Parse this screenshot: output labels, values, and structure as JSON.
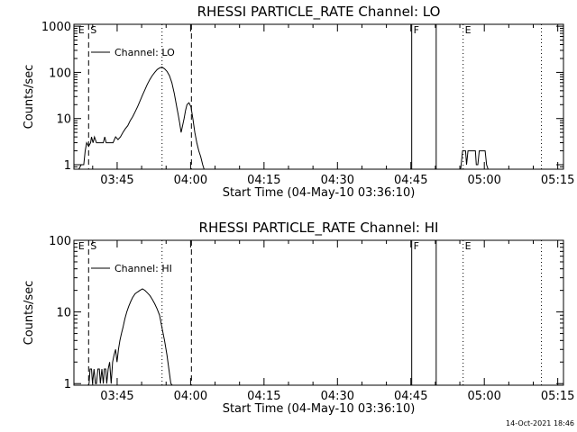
{
  "timestamp": "14-Oct-2021 18:46",
  "colors": {
    "background": "#ffffff",
    "ink": "#000000"
  },
  "chart_data": [
    {
      "type": "line",
      "title": "RHESSI PARTICLE_RATE Channel: LO",
      "xlabel": "Start Time (04-May-10 03:36:10)",
      "ylabel": "Counts/sec",
      "yscale": "log",
      "ylim": [
        0.8,
        1100
      ],
      "xlim_minutes": [
        0,
        100
      ],
      "xticks": [
        {
          "min": 8.83,
          "label": "03:45"
        },
        {
          "min": 23.83,
          "label": "04:00"
        },
        {
          "min": 38.83,
          "label": "04:15"
        },
        {
          "min": 53.83,
          "label": "04:30"
        },
        {
          "min": 68.83,
          "label": "04:45"
        },
        {
          "min": 83.83,
          "label": "05:00"
        },
        {
          "min": 98.83,
          "label": "05:15"
        }
      ],
      "yticks": [
        {
          "value": 1,
          "label": "1"
        },
        {
          "value": 10,
          "label": "10"
        },
        {
          "value": 100,
          "label": "100"
        },
        {
          "value": 1000,
          "label": "1000"
        }
      ],
      "legend": "Channel: LO",
      "markers": [
        {
          "min": 0.5,
          "style": "none",
          "label": "E"
        },
        {
          "min": 3.0,
          "style": "dashed",
          "label": "S"
        },
        {
          "min": 18.0,
          "style": "dotted",
          "label": ""
        },
        {
          "min": 24.0,
          "style": "dashed",
          "label": ""
        },
        {
          "min": 69.0,
          "style": "solid",
          "label": "F"
        },
        {
          "min": 74.0,
          "style": "solid",
          "label": ""
        },
        {
          "min": 79.5,
          "style": "dotted",
          "label": "E"
        },
        {
          "min": 95.5,
          "style": "dotted",
          "label": ""
        }
      ],
      "series": [
        {
          "name": "Channel: LO",
          "segments": [
            [
              [
                1,
                0.8
              ],
              [
                1.5,
                1
              ],
              [
                2,
                1
              ],
              [
                2.3,
                2
              ],
              [
                2.6,
                3
              ],
              [
                3,
                2.5
              ],
              [
                3.4,
                3
              ],
              [
                3.6,
                4
              ],
              [
                3.9,
                3
              ],
              [
                4.2,
                4
              ],
              [
                4.6,
                3
              ],
              [
                5,
                3
              ],
              [
                5.5,
                3
              ],
              [
                6,
                3
              ],
              [
                6.3,
                4
              ],
              [
                6.6,
                3
              ],
              [
                7,
                3
              ],
              [
                7.5,
                3
              ],
              [
                8,
                3
              ],
              [
                8.5,
                4
              ],
              [
                9,
                3.5
              ],
              [
                9.5,
                4
              ],
              [
                10,
                5
              ],
              [
                10.5,
                6
              ],
              [
                11,
                7
              ],
              [
                11.5,
                9
              ],
              [
                12,
                11
              ],
              [
                12.5,
                14
              ],
              [
                13,
                18
              ],
              [
                13.5,
                24
              ],
              [
                14,
                32
              ],
              [
                14.5,
                42
              ],
              [
                15,
                55
              ],
              [
                15.5,
                70
              ],
              [
                16,
                85
              ],
              [
                16.5,
                100
              ],
              [
                17,
                115
              ],
              [
                17.5,
                125
              ],
              [
                18,
                130
              ],
              [
                18.5,
                120
              ],
              [
                19,
                105
              ],
              [
                19.5,
                85
              ],
              [
                20,
                60
              ],
              [
                20.5,
                35
              ],
              [
                21,
                18
              ],
              [
                21.3,
                12
              ],
              [
                21.6,
                8
              ],
              [
                21.9,
                5
              ],
              [
                22.2,
                7
              ],
              [
                22.5,
                10
              ],
              [
                22.8,
                15
              ],
              [
                23.1,
                20
              ],
              [
                23.5,
                22
              ],
              [
                23.9,
                18
              ],
              [
                24.3,
                10
              ],
              [
                24.7,
                5
              ],
              [
                25.1,
                3
              ],
              [
                25.5,
                2
              ],
              [
                25.9,
                1.5
              ],
              [
                26.3,
                1
              ],
              [
                26.6,
                0.8
              ]
            ],
            [
              [
                79,
                0.8
              ],
              [
                79.4,
                2
              ],
              [
                80,
                2
              ],
              [
                80.2,
                1
              ],
              [
                80.5,
                2
              ],
              [
                81,
                2
              ],
              [
                81.5,
                2
              ],
              [
                82,
                2
              ],
              [
                82.2,
                1
              ],
              [
                82.5,
                1
              ],
              [
                82.8,
                2
              ],
              [
                83.5,
                2
              ],
              [
                84,
                2
              ],
              [
                84.3,
                1
              ],
              [
                84.6,
                0.8
              ]
            ]
          ]
        }
      ]
    },
    {
      "type": "line",
      "title": "RHESSI PARTICLE_RATE Channel: HI",
      "xlabel": "Start Time (04-May-10 03:36:10)",
      "ylabel": "Counts/sec",
      "yscale": "log",
      "ylim": [
        0.95,
        100
      ],
      "xlim_minutes": [
        0,
        100
      ],
      "xticks": [
        {
          "min": 8.83,
          "label": "03:45"
        },
        {
          "min": 23.83,
          "label": "04:00"
        },
        {
          "min": 38.83,
          "label": "04:15"
        },
        {
          "min": 53.83,
          "label": "04:30"
        },
        {
          "min": 68.83,
          "label": "04:45"
        },
        {
          "min": 83.83,
          "label": "05:00"
        },
        {
          "min": 98.83,
          "label": "05:15"
        }
      ],
      "yticks": [
        {
          "value": 1,
          "label": "1"
        },
        {
          "value": 10,
          "label": "10"
        },
        {
          "value": 100,
          "label": "100"
        }
      ],
      "legend": "Channel: HI",
      "markers": [
        {
          "min": 0.5,
          "style": "none",
          "label": "E"
        },
        {
          "min": 3.0,
          "style": "dashed",
          "label": "S"
        },
        {
          "min": 18.0,
          "style": "dotted",
          "label": ""
        },
        {
          "min": 24.0,
          "style": "dashed",
          "label": ""
        },
        {
          "min": 69.0,
          "style": "solid",
          "label": "F"
        },
        {
          "min": 74.0,
          "style": "solid",
          "label": ""
        },
        {
          "min": 79.5,
          "style": "dotted",
          "label": "E"
        },
        {
          "min": 95.5,
          "style": "dotted",
          "label": ""
        }
      ],
      "series": [
        {
          "name": "Channel: HI",
          "segments": [
            [
              [
                2.9,
                0.95
              ],
              [
                3.1,
                1
              ],
              [
                3.3,
                1.6
              ],
              [
                3.6,
                1.6
              ],
              [
                3.8,
                1
              ],
              [
                4.1,
                1.6
              ],
              [
                4.4,
                1
              ],
              [
                4.6,
                1
              ],
              [
                4.9,
                1.6
              ],
              [
                5.2,
                1.6
              ],
              [
                5.4,
                1
              ],
              [
                5.7,
                1.6
              ],
              [
                6,
                1
              ],
              [
                6.2,
                1.6
              ],
              [
                6.5,
                1.6
              ],
              [
                6.7,
                1
              ],
              [
                7,
                1.6
              ],
              [
                7.3,
                2
              ],
              [
                7.6,
                1
              ],
              [
                7.9,
                2
              ],
              [
                8.2,
                2.5
              ],
              [
                8.5,
                3
              ],
              [
                8.8,
                2
              ],
              [
                9.1,
                3
              ],
              [
                9.4,
                4
              ],
              [
                9.7,
                5
              ],
              [
                10,
                6
              ],
              [
                10.4,
                8
              ],
              [
                10.8,
                10
              ],
              [
                11.2,
                12
              ],
              [
                11.6,
                14
              ],
              [
                12,
                16
              ],
              [
                12.5,
                18
              ],
              [
                13,
                19
              ],
              [
                13.5,
                20
              ],
              [
                14,
                21
              ],
              [
                14.5,
                20
              ],
              [
                15,
                18.5
              ],
              [
                15.5,
                17
              ],
              [
                16,
                15
              ],
              [
                16.5,
                13
              ],
              [
                17,
                11
              ],
              [
                17.5,
                9
              ],
              [
                18,
                6
              ],
              [
                18.5,
                4
              ],
              [
                19,
                2.5
              ],
              [
                19.4,
                1.6
              ],
              [
                19.8,
                1
              ],
              [
                20.1,
                0.95
              ]
            ]
          ]
        }
      ]
    }
  ]
}
